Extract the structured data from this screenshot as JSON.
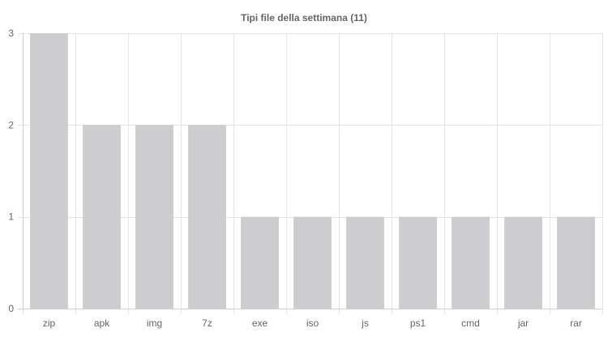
{
  "chart_data": {
    "type": "bar",
    "title": "Tipi file della settimana (11)",
    "categories": [
      "zip",
      "apk",
      "img",
      "7z",
      "exe",
      "iso",
      "js",
      "ps1",
      "cmd",
      "jar",
      "rar"
    ],
    "values": [
      3,
      2,
      2,
      2,
      1,
      1,
      1,
      1,
      1,
      1,
      1
    ],
    "xlabel": "",
    "ylabel": "",
    "ylim": [
      0,
      3
    ],
    "yticks": [
      "0",
      "1",
      "2",
      "3"
    ],
    "grid": true,
    "legend": "none",
    "bar_color": "#cdcdcf",
    "grid_color": "#e5e5e5",
    "text_color": "#666666"
  }
}
